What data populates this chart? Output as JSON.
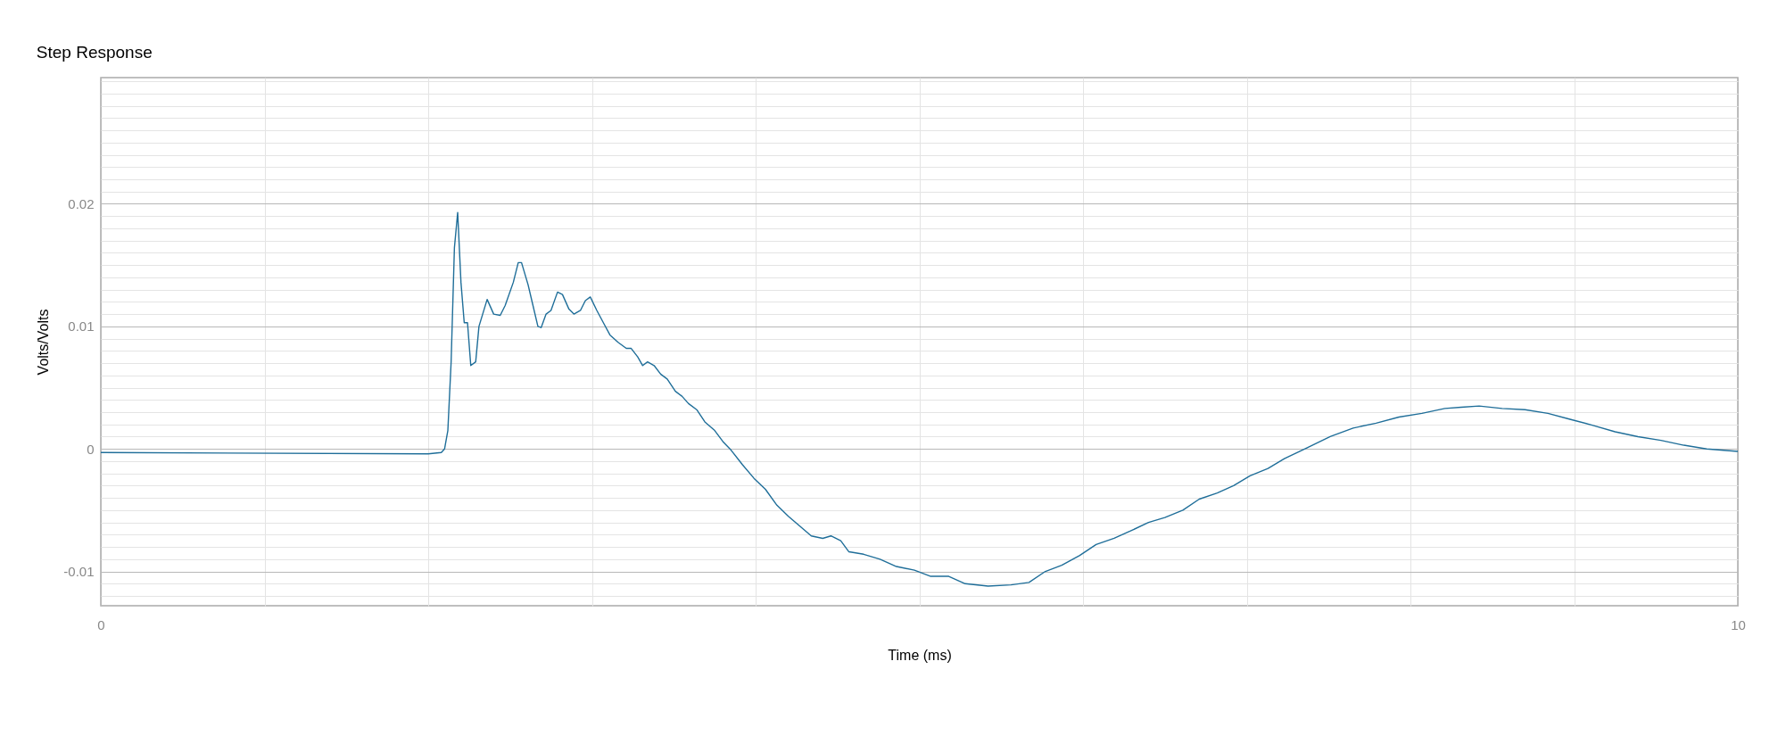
{
  "chart_data": {
    "type": "line",
    "title": "Step Response",
    "xlabel": "Time (ms)",
    "ylabel": "Volts/Volts",
    "x": [
      0,
      2.0,
      2.08,
      2.1,
      2.12,
      2.14,
      2.16,
      2.18,
      2.2,
      2.22,
      2.24,
      2.26,
      2.29,
      2.31,
      2.36,
      2.4,
      2.44,
      2.47,
      2.52,
      2.55,
      2.57,
      2.61,
      2.64,
      2.67,
      2.69,
      2.72,
      2.75,
      2.79,
      2.82,
      2.86,
      2.89,
      2.93,
      2.96,
      2.99,
      3.03,
      3.07,
      3.11,
      3.16,
      3.21,
      3.24,
      3.28,
      3.31,
      3.34,
      3.38,
      3.42,
      3.46,
      3.51,
      3.55,
      3.59,
      3.64,
      3.69,
      3.75,
      3.8,
      3.85,
      3.92,
      3.99,
      4.06,
      4.13,
      4.2,
      4.27,
      4.34,
      4.41,
      4.46,
      4.52,
      4.57,
      4.66,
      4.76,
      4.86,
      4.97,
      5.07,
      5.18,
      5.28,
      5.42,
      5.56,
      5.67,
      5.77,
      5.87,
      5.98,
      6.08,
      6.19,
      6.29,
      6.4,
      6.5,
      6.61,
      6.71,
      6.82,
      6.92,
      7.02,
      7.13,
      7.23,
      7.37,
      7.51,
      7.65,
      7.79,
      7.93,
      8.07,
      8.21,
      8.31,
      8.42,
      8.56,
      8.7,
      8.84,
      8.98,
      9.12,
      9.25,
      9.39,
      9.53,
      9.67,
      9.81,
      10
    ],
    "series": [
      {
        "color": "#1f6e99",
        "values": [
          -0.0003,
          -0.0004,
          -0.0003,
          0,
          0.0015,
          0.0071,
          0.0164,
          0.0193,
          0.0136,
          0.0103,
          0.0103,
          0.0068,
          0.0071,
          0.01,
          0.0122,
          0.011,
          0.0109,
          0.0117,
          0.0136,
          0.0152,
          0.0152,
          0.0134,
          0.0117,
          0.01,
          0.0099,
          0.011,
          0.0113,
          0.0128,
          0.0126,
          0.0114,
          0.011,
          0.0113,
          0.0121,
          0.0124,
          0.0113,
          0.0103,
          0.0093,
          0.0087,
          0.0082,
          0.0082,
          0.0075,
          0.0068,
          0.0071,
          0.0068,
          0.0061,
          0.0057,
          0.0047,
          0.0043,
          0.0037,
          0.0032,
          0.0022,
          0.0015,
          0.0006,
          -0.0001,
          -0.0013,
          -0.0024,
          -0.0033,
          -0.0046,
          -0.0055,
          -0.0063,
          -0.0071,
          -0.0073,
          -0.0071,
          -0.0075,
          -0.0084,
          -0.0086,
          -0.009,
          -0.0096,
          -0.0099,
          -0.0104,
          -0.0104,
          -0.011,
          -0.0112,
          -0.0111,
          -0.0109,
          -0.01,
          -0.0095,
          -0.0087,
          -0.0078,
          -0.0073,
          -0.0067,
          -0.006,
          -0.0056,
          -0.005,
          -0.0041,
          -0.0036,
          -0.003,
          -0.0022,
          -0.0016,
          -0.0008,
          0.0001,
          0.001,
          0.0017,
          0.0021,
          0.0026,
          0.0029,
          0.0033,
          0.0034,
          0.0035,
          0.0033,
          0.0032,
          0.0029,
          0.0024,
          0.0019,
          0.0014,
          0.001,
          0.0007,
          0.0003,
          0,
          -0.0002
        ]
      }
    ],
    "xlim": [
      0,
      10
    ],
    "xticks": [
      0,
      {
        "value": 1,
        "label": null
      },
      {
        "value": 2,
        "label": null
      },
      {
        "value": 3,
        "label": null
      },
      {
        "value": 4,
        "label": null
      },
      {
        "value": 5,
        "label": null
      },
      {
        "value": 6,
        "label": null
      },
      {
        "value": 7,
        "label": null
      },
      {
        "value": 8,
        "label": null
      },
      {
        "value": 9,
        "label": null
      },
      10
    ],
    "ylim": [
      -0.0128,
      0.0303
    ],
    "yticks": [
      {
        "value": -0.012,
        "label": null
      },
      {
        "value": -0.011,
        "label": null
      },
      -0.01,
      {
        "value": -0.009,
        "label": null
      },
      {
        "value": -0.008,
        "label": null
      },
      {
        "value": -0.007,
        "label": null
      },
      {
        "value": -0.006,
        "label": null
      },
      {
        "value": -0.005,
        "label": null
      },
      {
        "value": -0.004,
        "label": null
      },
      {
        "value": -0.003,
        "label": null
      },
      {
        "value": -0.002,
        "label": null
      },
      {
        "value": -0.001,
        "label": null
      },
      0,
      {
        "value": 0.001,
        "label": null
      },
      {
        "value": 0.002,
        "label": null
      },
      {
        "value": 0.003,
        "label": null
      },
      {
        "value": 0.004,
        "label": null
      },
      {
        "value": 0.005,
        "label": null
      },
      {
        "value": 0.006,
        "label": null
      },
      {
        "value": 0.007,
        "label": null
      },
      {
        "value": 0.008,
        "label": null
      },
      {
        "value": 0.009,
        "label": null
      },
      0.01,
      {
        "value": 0.011,
        "label": null
      },
      {
        "value": 0.012,
        "label": null
      },
      {
        "value": 0.013,
        "label": null
      },
      {
        "value": 0.014,
        "label": null
      },
      {
        "value": 0.015,
        "label": null
      },
      {
        "value": 0.016,
        "label": null
      },
      {
        "value": 0.017,
        "label": null
      },
      {
        "value": 0.018,
        "label": null
      },
      {
        "value": 0.019,
        "label": null
      },
      0.02,
      {
        "value": 0.021,
        "label": null
      },
      {
        "value": 0.022,
        "label": null
      },
      {
        "value": 0.023,
        "label": null
      },
      {
        "value": 0.024,
        "label": null
      },
      {
        "value": 0.025,
        "label": null
      },
      {
        "value": 0.026,
        "label": null
      },
      {
        "value": 0.027,
        "label": null
      },
      {
        "value": 0.028,
        "label": null
      },
      {
        "value": 0.029,
        "label": null
      },
      {
        "value": 0.03,
        "label": null
      }
    ],
    "grid": true,
    "marker": "none",
    "line_style": "solid"
  }
}
